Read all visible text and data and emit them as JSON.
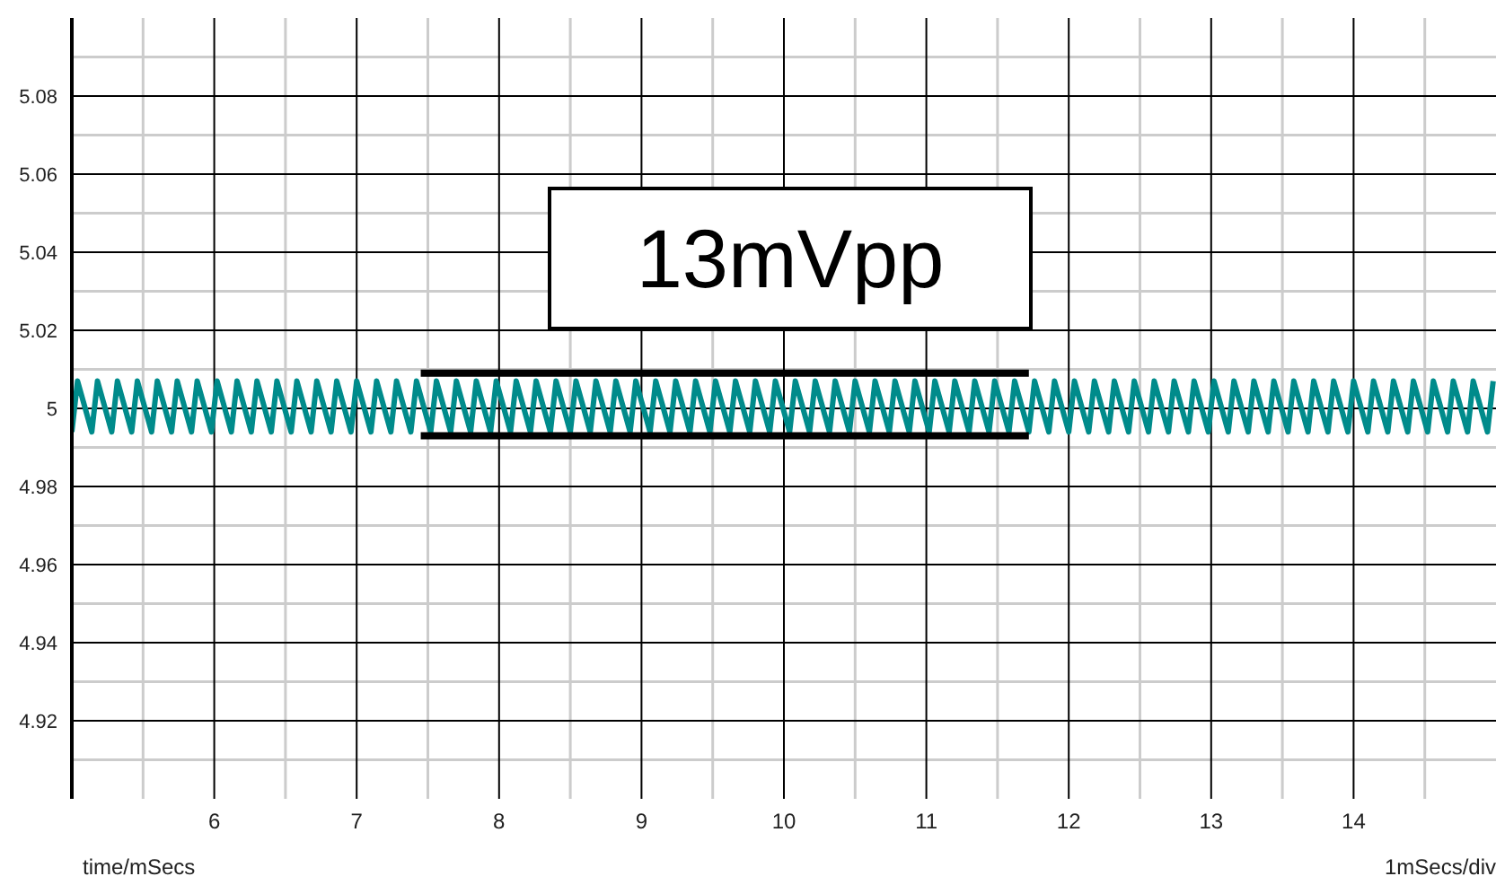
{
  "chart_data": {
    "type": "line",
    "xlabel": "time/mSecs",
    "annotations": [
      "13mVpp",
      "1mSecs/div"
    ],
    "xlim": [
      5,
      15
    ],
    "ylim": [
      4.9,
      5.1
    ],
    "xticks": [
      {
        "value": 5.5,
        "label": null
      },
      6,
      {
        "value": 6.5,
        "label": null
      },
      7,
      {
        "value": 7.5,
        "label": null
      },
      8,
      {
        "value": 8.5,
        "label": null
      },
      9,
      {
        "value": 9.5,
        "label": null
      },
      10,
      {
        "value": 10.5,
        "label": null
      },
      11,
      {
        "value": 11.5,
        "label": null
      },
      12,
      {
        "value": 12.5,
        "label": null
      },
      13,
      {
        "value": 13.5,
        "label": null
      },
      14,
      {
        "value": 14.5,
        "label": null
      }
    ],
    "yticks": [
      {
        "value": 4.91,
        "label": null
      },
      4.92,
      {
        "value": 4.93,
        "label": null
      },
      4.94,
      {
        "value": 4.95,
        "label": null
      },
      4.96,
      {
        "value": 4.97,
        "label": null
      },
      4.98,
      {
        "value": 4.99,
        "label": null
      },
      5,
      {
        "value": 5.01,
        "label": null
      },
      5.02,
      {
        "value": 5.03,
        "label": null
      },
      5.04,
      {
        "value": 5.05,
        "label": null
      },
      5.06,
      {
        "value": 5.07,
        "label": null
      },
      5.08,
      {
        "value": 5.09,
        "label": null
      }
    ],
    "grid": true,
    "series": [
      {
        "type": "line",
        "color": "#008b8b",
        "x": [
          5.0,
          5.04,
          5.14,
          5.18,
          5.28,
          5.32,
          5.42,
          5.46,
          5.56,
          5.6,
          5.7,
          5.74,
          5.84,
          5.88,
          5.98,
          6.02,
          6.12,
          6.16,
          6.26,
          6.3,
          6.4,
          6.44,
          6.54,
          6.58,
          6.68,
          6.72,
          6.82,
          6.86,
          6.96,
          7.0,
          7.1,
          7.14,
          7.24,
          7.28,
          7.38,
          7.42,
          7.52,
          7.56,
          7.66,
          7.7,
          7.8,
          7.84,
          7.94,
          7.98,
          8.08,
          8.12,
          8.22,
          8.26,
          8.36,
          8.4,
          8.5,
          8.54,
          8.64,
          8.68,
          8.78,
          8.82,
          8.92,
          8.96,
          9.06,
          9.1,
          9.2,
          9.24,
          9.34,
          9.38,
          9.48,
          9.52,
          9.62,
          9.66,
          9.76,
          9.8,
          9.9,
          9.94,
          10.04,
          10.08,
          10.18,
          10.22,
          10.32,
          10.36,
          10.46,
          10.5,
          10.6,
          10.64,
          10.74,
          10.78,
          10.88,
          10.92,
          11.02,
          11.06,
          11.16,
          11.2,
          11.3,
          11.34,
          11.44,
          11.48,
          11.58,
          11.62,
          11.72,
          11.76,
          11.86,
          11.9,
          12.0,
          12.04,
          12.14,
          12.18,
          12.28,
          12.32,
          12.42,
          12.46,
          12.56,
          12.6,
          12.7,
          12.74,
          12.84,
          12.88,
          12.98,
          13.02,
          13.12,
          13.16,
          13.26,
          13.3,
          13.4,
          13.44,
          13.54,
          13.58,
          13.68,
          13.72,
          13.82,
          13.86,
          13.96,
          14.0,
          14.1,
          14.14,
          14.24,
          14.28,
          14.38,
          14.42,
          14.52,
          14.56,
          14.66,
          14.7,
          14.8,
          14.84,
          14.94,
          14.98
        ],
        "values": [
          4.994,
          5.007,
          4.994,
          5.007,
          4.994,
          5.007,
          4.994,
          5.007,
          4.994,
          5.007,
          4.994,
          5.007,
          4.994,
          5.007,
          4.994,
          5.007,
          4.994,
          5.007,
          4.994,
          5.007,
          4.994,
          5.007,
          4.994,
          5.007,
          4.994,
          5.007,
          4.994,
          5.007,
          4.994,
          5.007,
          4.994,
          5.007,
          4.994,
          5.007,
          4.994,
          5.007,
          4.994,
          5.007,
          4.994,
          5.007,
          4.994,
          5.007,
          4.994,
          5.007,
          4.994,
          5.007,
          4.994,
          5.007,
          4.994,
          5.007,
          4.994,
          5.007,
          4.994,
          5.007,
          4.994,
          5.007,
          4.994,
          5.007,
          4.994,
          5.007,
          4.994,
          5.007,
          4.994,
          5.007,
          4.994,
          5.007,
          4.994,
          5.007,
          4.994,
          5.007,
          4.994,
          5.007,
          4.994,
          5.007,
          4.994,
          5.007,
          4.994,
          5.007,
          4.994,
          5.007,
          4.994,
          5.007,
          4.994,
          5.007,
          4.994,
          5.007,
          4.994,
          5.007,
          4.994,
          5.007,
          4.994,
          5.007,
          4.994,
          5.007,
          4.994,
          5.007,
          4.994,
          5.007,
          4.994,
          5.007,
          4.994,
          5.007,
          4.994,
          5.007,
          4.994,
          5.007,
          4.994,
          5.007,
          4.994,
          5.007,
          4.994,
          5.007,
          4.994,
          5.007,
          4.994,
          5.007,
          4.994,
          5.007,
          4.994,
          5.007,
          4.994,
          5.007,
          4.994,
          5.007,
          4.994,
          5.007,
          4.994,
          5.007,
          4.994,
          5.007,
          4.994,
          5.007,
          4.994,
          5.007,
          4.994,
          5.007,
          4.994,
          5.007,
          4.994,
          5.007,
          4.994,
          5.007,
          4.994,
          5.007
        ]
      },
      {
        "type": "line",
        "color": "#000000",
        "x": [
          7.45,
          11.72
        ],
        "values": [
          5.009,
          5.009
        ]
      },
      {
        "type": "line",
        "color": "#000000",
        "x": [
          7.45,
          11.72
        ],
        "values": [
          4.993,
          4.993
        ]
      }
    ]
  }
}
